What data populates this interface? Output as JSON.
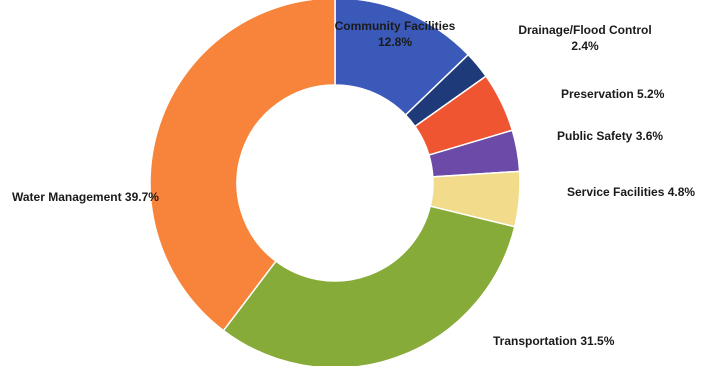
{
  "chart_data": {
    "type": "pie",
    "donut": true,
    "title": "",
    "slices": [
      {
        "label": "Community Facilities",
        "value": 12.8,
        "color": "#3a59b8"
      },
      {
        "label": "Drainage/Flood Control",
        "value": 2.4,
        "color": "#1f3a78"
      },
      {
        "label": "Preservation",
        "value": 5.2,
        "color": "#ee5530"
      },
      {
        "label": "Public Safety",
        "value": 3.6,
        "color": "#6b4aa8"
      },
      {
        "label": "Service Facilities",
        "value": 4.8,
        "color": "#f2dc8c"
      },
      {
        "label": "Transportation",
        "value": 31.5,
        "color": "#86ab38"
      },
      {
        "label": "Water Management",
        "value": 39.7,
        "color": "#f7843a"
      }
    ],
    "labels": {
      "community": {
        "line1": "Community Facilities",
        "line2": "12.8%"
      },
      "drainage": {
        "line1": "Drainage/Flood Control",
        "line2": "2.4%"
      },
      "preservation": "Preservation 5.2%",
      "public_safety": "Public Safety 3.6%",
      "service": "Service Facilities 4.8%",
      "transportation": "Transportation 31.5%",
      "water": "Water Management 39.7%"
    }
  }
}
